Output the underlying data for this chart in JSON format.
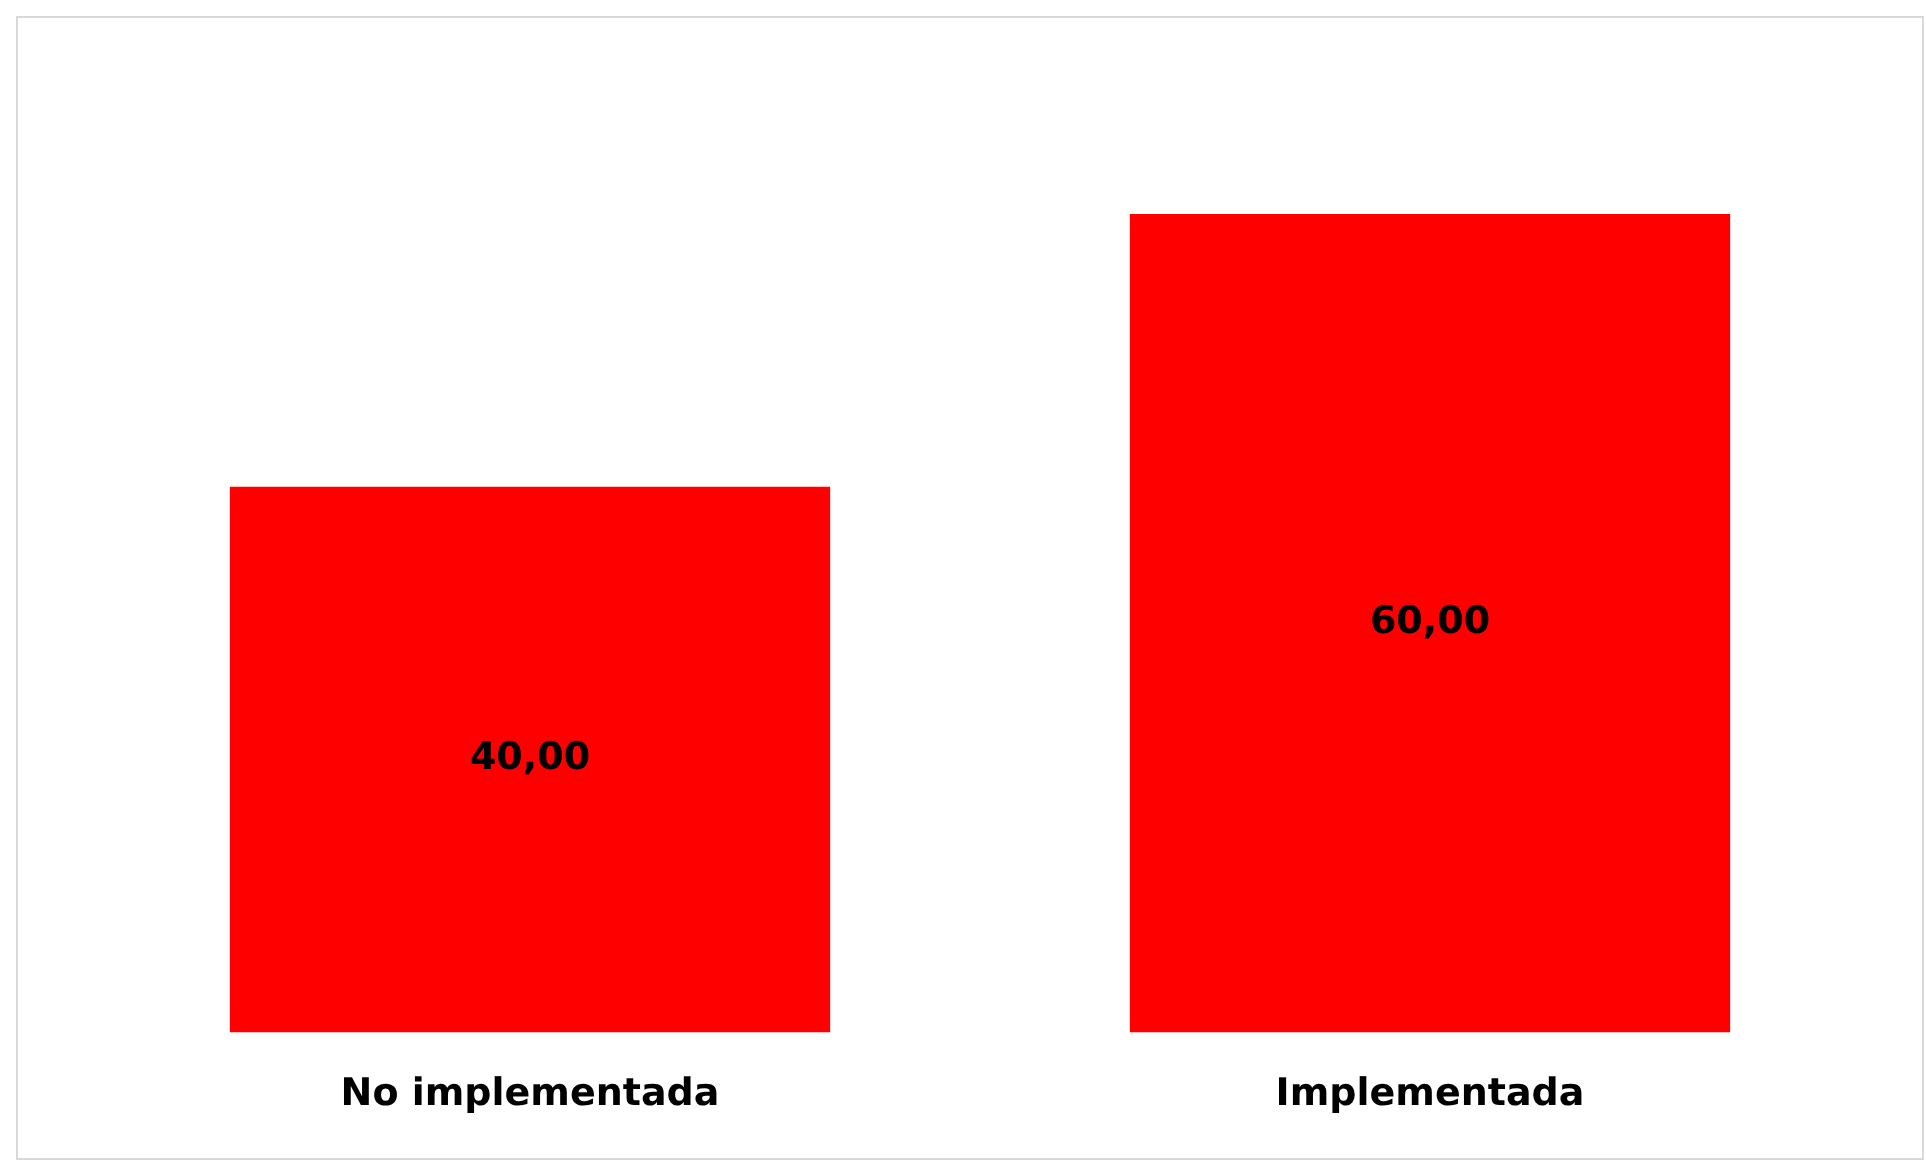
{
  "chart_data": {
    "type": "bar",
    "categories": [
      "No implementada",
      "Implementada"
    ],
    "values": [
      40,
      60
    ],
    "color": "#ff0000",
    "value_labels": [
      "40,00",
      "60,00"
    ]
  }
}
